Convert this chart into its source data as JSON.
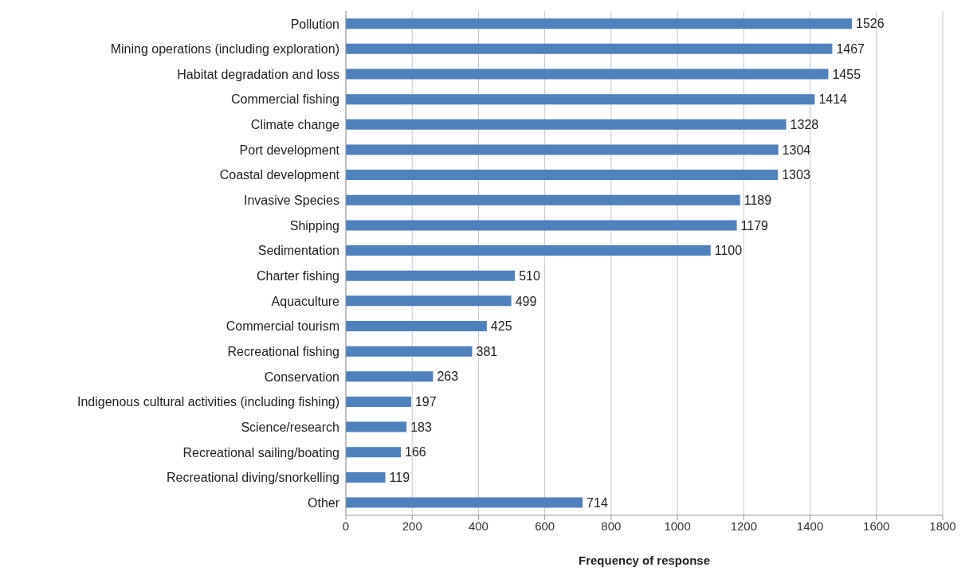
{
  "chart_data": {
    "type": "bar",
    "orientation": "horizontal",
    "xlabel": "Frequency of response",
    "categories": [
      "Pollution",
      "Mining operations (including exploration)",
      "Habitat degradation and loss",
      "Commercial fishing",
      "Climate change",
      "Port development",
      "Coastal development",
      "Invasive Species",
      "Shipping",
      "Sedimentation",
      "Charter fishing",
      "Aquaculture",
      "Commercial tourism",
      "Recreational fishing",
      "Conservation",
      "Indigenous cultural activities (including fishing)",
      "Science/research",
      "Recreational sailing/boating",
      "Recreational diving/snorkelling",
      "Other"
    ],
    "values": [
      1526,
      1467,
      1455,
      1414,
      1328,
      1304,
      1303,
      1189,
      1179,
      1100,
      510,
      499,
      425,
      381,
      263,
      197,
      183,
      166,
      119,
      714
    ],
    "color": "#4f81bd",
    "xlim": [
      0,
      1800
    ],
    "xticks": [
      0,
      200,
      400,
      600,
      800,
      1000,
      1200,
      1400,
      1600,
      1800
    ],
    "grid": "x",
    "data_labels": true
  }
}
